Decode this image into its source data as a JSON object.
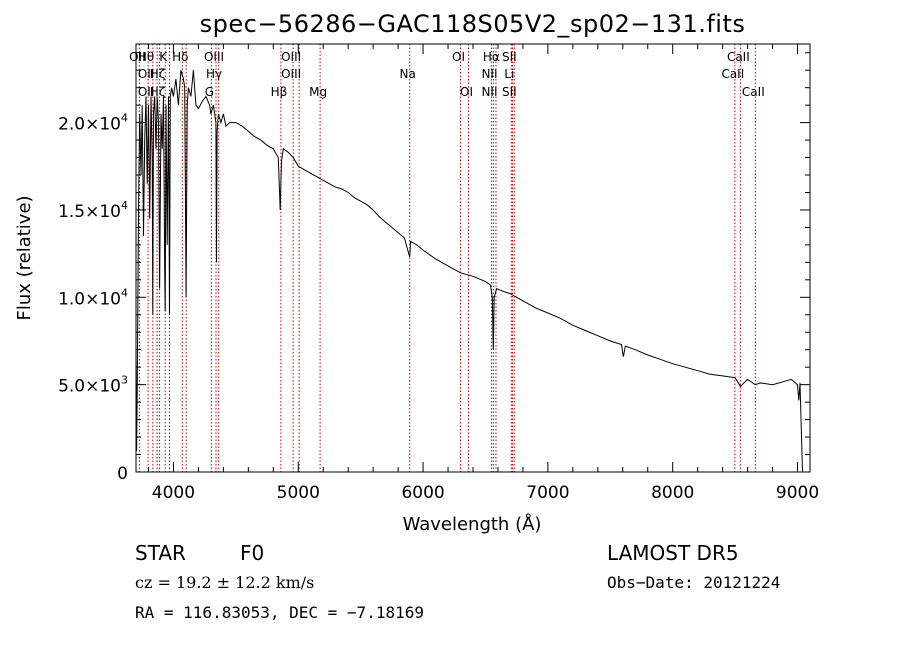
{
  "chart_data": {
    "type": "line",
    "title": "spec−56286−GAC118S05V2_sp02−131.fits",
    "xlabel": "Wavelength (Å)",
    "ylabel": "Flux (relative)",
    "xlim": [
      3700,
      9100
    ],
    "ylim": [
      0,
      24500
    ],
    "x_ticks": [
      {
        "value": 4000,
        "label": "4000"
      },
      {
        "value": 5000,
        "label": "5000"
      },
      {
        "value": 6000,
        "label": "6000"
      },
      {
        "value": 7000,
        "label": "7000"
      },
      {
        "value": 8000,
        "label": "8000"
      },
      {
        "value": 9000,
        "label": "9000"
      }
    ],
    "y_ticks": [
      {
        "value": 0,
        "label": "0"
      },
      {
        "value": 5000,
        "label": "5.0×10",
        "exp": "3"
      },
      {
        "value": 10000,
        "label": "1.0×10",
        "exp": "4"
      },
      {
        "value": 15000,
        "label": "1.5×10",
        "exp": "4"
      },
      {
        "value": 20000,
        "label": "2.0×10",
        "exp": "4"
      }
    ],
    "line_color": "#000000",
    "marker_color": "#cc0000",
    "series": [
      {
        "x": [
          3700,
          3705,
          3710,
          3720,
          3730,
          3740,
          3750,
          3760,
          3770,
          3780,
          3790,
          3800,
          3810,
          3820,
          3830,
          3835,
          3840,
          3850,
          3860,
          3870,
          3880,
          3889,
          3900,
          3910,
          3920,
          3930,
          3934,
          3940,
          3950,
          3960,
          3968,
          3975,
          3985,
          4000,
          4020,
          4040,
          4060,
          4080,
          4090,
          4101,
          4110,
          4120,
          4140,
          4160,
          4180,
          4200,
          4230,
          4260,
          4290,
          4300,
          4320,
          4340,
          4345,
          4350,
          4360,
          4380,
          4400,
          4420,
          4450,
          4500,
          4550,
          4600,
          4650,
          4700,
          4750,
          4800,
          4840,
          4855,
          4861,
          4866,
          4880,
          4920,
          4960,
          5000,
          5050,
          5100,
          5150,
          5200,
          5250,
          5300,
          5350,
          5400,
          5450,
          5500,
          5550,
          5600,
          5650,
          5700,
          5750,
          5800,
          5850,
          5893,
          5900,
          5950,
          6000,
          6100,
          6200,
          6300,
          6400,
          6500,
          6540,
          6555,
          6563,
          6570,
          6590,
          6620,
          6700,
          6800,
          6900,
          7000,
          7100,
          7200,
          7300,
          7400,
          7500,
          7590,
          7605,
          7620,
          7700,
          7800,
          7900,
          8000,
          8100,
          8200,
          8300,
          8400,
          8500,
          8542,
          8600,
          8662,
          8700,
          8800,
          8900,
          8950,
          9000,
          9010,
          9020,
          9040
        ],
        "y": [
          7000,
          1200,
          4500,
          15000,
          20500,
          17000,
          21000,
          13500,
          19000,
          21500,
          16500,
          21000,
          14500,
          21500,
          18000,
          9000,
          20500,
          21500,
          18500,
          21500,
          20000,
          10500,
          20500,
          18500,
          21500,
          11500,
          9200,
          21000,
          13000,
          21500,
          9000,
          21500,
          22000,
          21500,
          22500,
          21000,
          23000,
          22500,
          22000,
          10000,
          21000,
          22000,
          21500,
          23000,
          21000,
          20800,
          21200,
          21500,
          21000,
          20500,
          21000,
          20000,
          12000,
          19500,
          20500,
          20000,
          20500,
          19800,
          20000,
          20000,
          19800,
          19500,
          19200,
          19000,
          18700,
          18500,
          18000,
          15000,
          16500,
          17800,
          18500,
          18300,
          18000,
          17500,
          17300,
          17100,
          16900,
          16700,
          16500,
          16300,
          16200,
          16000,
          15700,
          15500,
          15300,
          15000,
          14600,
          14300,
          14000,
          13700,
          13400,
          12300,
          13200,
          13000,
          12700,
          12200,
          11800,
          11400,
          11200,
          10900,
          10700,
          10000,
          7000,
          10000,
          10500,
          10400,
          10200,
          9800,
          9400,
          9100,
          8800,
          8400,
          8100,
          7800,
          7500,
          7300,
          6600,
          7200,
          7000,
          6700,
          6450,
          6200,
          6000,
          5800,
          5600,
          5500,
          5400,
          4900,
          5300,
          5000,
          5100,
          5000,
          5200,
          5300,
          5000,
          4100,
          5100,
          0
        ]
      }
    ],
    "line_markers": [
      {
        "x": 3727,
        "top": "OII",
        "mid": "",
        "bot": ""
      },
      {
        "x": 3797,
        "top": "Hθ",
        "mid": "OII",
        "bot": "OII"
      },
      {
        "x": 3835,
        "top": "",
        "mid": "",
        "bot": ""
      },
      {
        "x": 3869,
        "top": "",
        "mid": "",
        "bot": ""
      },
      {
        "x": 3889,
        "top": "",
        "mid": "Hζ",
        "bot": "Hζ"
      },
      {
        "x": 3934,
        "top": "K",
        "mid": "",
        "bot": ""
      },
      {
        "x": 3968,
        "top": "",
        "mid": "",
        "bot": ""
      },
      {
        "x": 4071,
        "top": "Hδ",
        "mid": "",
        "bot": ""
      },
      {
        "x": 4102,
        "top": "",
        "mid": "",
        "bot": ""
      },
      {
        "x": 4304,
        "top": "",
        "mid": "",
        "bot": "G"
      },
      {
        "x": 4341,
        "top": "OIII",
        "mid": "Hγ",
        "bot": ""
      },
      {
        "x": 4363,
        "top": "",
        "mid": "",
        "bot": ""
      },
      {
        "x": 4861,
        "top": "",
        "mid": "",
        "bot": "Hβ"
      },
      {
        "x": 4959,
        "top": "OIII",
        "mid": "OIII",
        "bot": ""
      },
      {
        "x": 5007,
        "top": "",
        "mid": "",
        "bot": ""
      },
      {
        "x": 5175,
        "top": "",
        "mid": "",
        "bot": "Mg"
      },
      {
        "x": 5893,
        "top": "",
        "mid": "Na",
        "bot": ""
      },
      {
        "x": 6300,
        "top": "OI",
        "mid": "",
        "bot": ""
      },
      {
        "x": 6364,
        "top": "",
        "mid": "",
        "bot": "OI"
      },
      {
        "x": 6548,
        "top": "",
        "mid": "NII",
        "bot": "NII"
      },
      {
        "x": 6563,
        "top": "Hα",
        "mid": "",
        "bot": ""
      },
      {
        "x": 6584,
        "top": "",
        "mid": "",
        "bot": ""
      },
      {
        "x": 6707,
        "top": "SII",
        "mid": "Li",
        "bot": "SII"
      },
      {
        "x": 6717,
        "top": "",
        "mid": "",
        "bot": ""
      },
      {
        "x": 6731,
        "top": "",
        "mid": "",
        "bot": ""
      },
      {
        "x": 8498,
        "top": "",
        "mid": "CaII",
        "bot": ""
      },
      {
        "x": 8542,
        "top": "CaII",
        "mid": "",
        "bot": ""
      },
      {
        "x": 8662,
        "top": "",
        "mid": "",
        "bot": "CaII"
      }
    ]
  },
  "info": {
    "class_label": "STAR",
    "subclass": "F0",
    "survey": "LAMOST DR5",
    "cz_line": "cz = 19.2 ± 12.2 km/s",
    "obs_date": "Obs−Date: 20121224",
    "radec": "RA = 116.83053, DEC =  −7.18169"
  }
}
